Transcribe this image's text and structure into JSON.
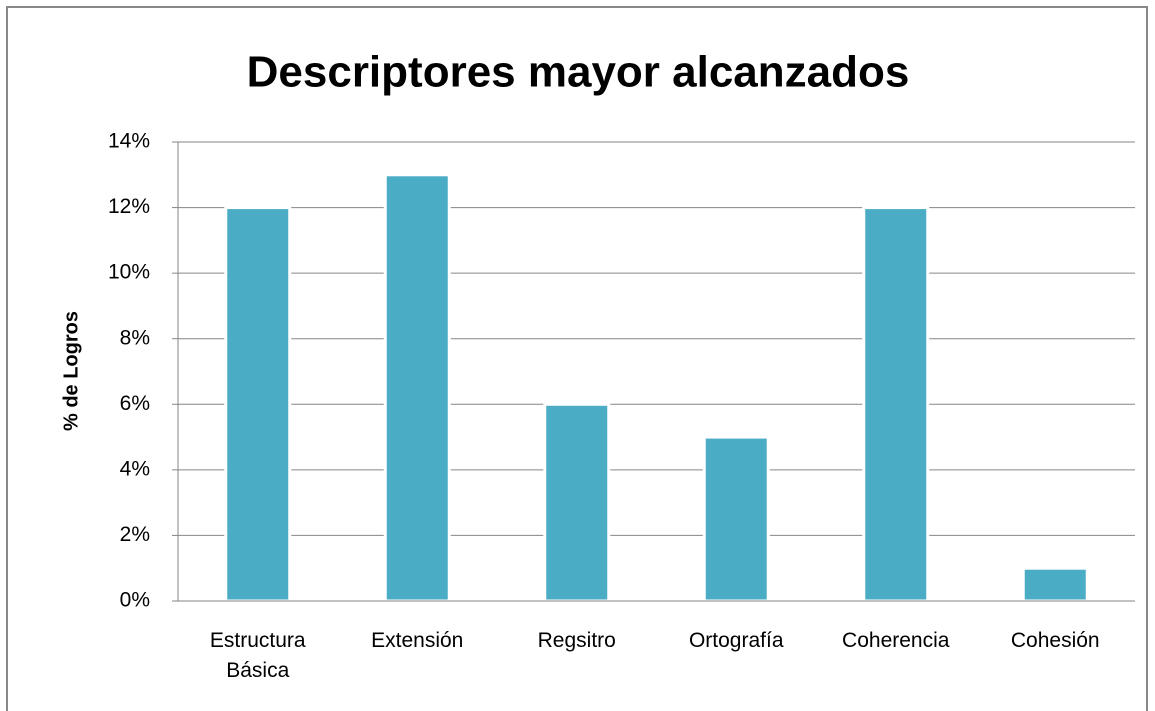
{
  "chart_data": {
    "type": "bar",
    "title": "Descriptores mayor alcanzados",
    "y_label": "% de Logros",
    "categories": [
      "Estructura Básica",
      "Extensión",
      "Regsitro",
      "Ortografía",
      "Coherencia",
      "Cohesión"
    ],
    "values": [
      12,
      13,
      6,
      5,
      12,
      1
    ],
    "color": "#4bacc6",
    "ylim": [
      0,
      14
    ],
    "yticks": [
      {
        "value": 0,
        "label": "0%"
      },
      {
        "value": 2,
        "label": "2%"
      },
      {
        "value": 4,
        "label": "4%"
      },
      {
        "value": 6,
        "label": "6%"
      },
      {
        "value": 8,
        "label": "8%"
      },
      {
        "value": 10,
        "label": "10%"
      },
      {
        "value": 12,
        "label": "12%"
      },
      {
        "value": 14,
        "label": "14%"
      }
    ],
    "grid": true
  }
}
